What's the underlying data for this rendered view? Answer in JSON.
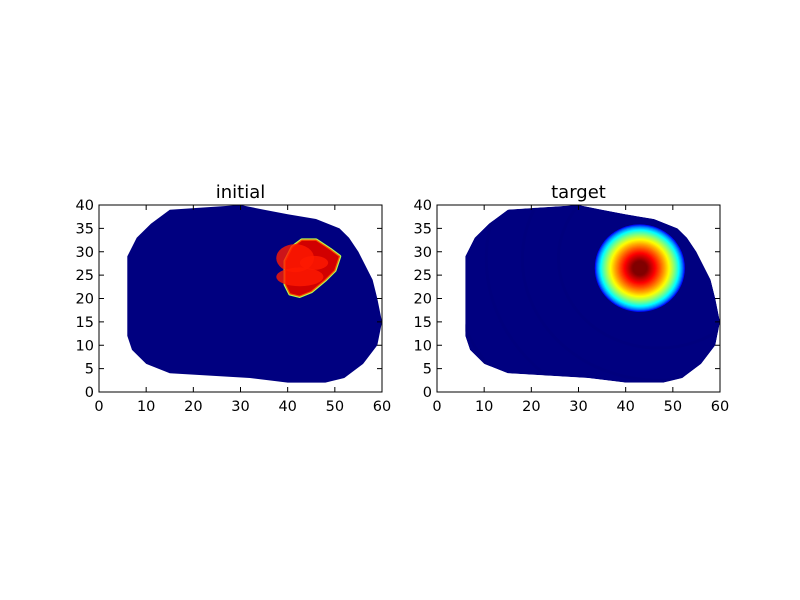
{
  "chart_data": [
    {
      "type": "heatmap",
      "title": "initial",
      "xlabel": "",
      "ylabel": "",
      "xlim": [
        0,
        60
      ],
      "ylim": [
        0,
        40
      ],
      "xticks": [
        "0",
        "10",
        "20",
        "30",
        "40",
        "50",
        "60"
      ],
      "yticks": [
        "0",
        "5",
        "10",
        "15",
        "20",
        "25",
        "30",
        "35",
        "40"
      ],
      "colormap": "jet",
      "background_level": 0.0,
      "domain_outline": [
        [
          6,
          12
        ],
        [
          6,
          29
        ],
        [
          8,
          33
        ],
        [
          11,
          36
        ],
        [
          15,
          39
        ],
        [
          30,
          40
        ],
        [
          35,
          39
        ],
        [
          40,
          38
        ],
        [
          46,
          37
        ],
        [
          51,
          35
        ],
        [
          53,
          33
        ],
        [
          55,
          30
        ],
        [
          58,
          24
        ],
        [
          59,
          20
        ],
        [
          60,
          15
        ],
        [
          59,
          10
        ],
        [
          56,
          6
        ],
        [
          52,
          3
        ],
        [
          48,
          2
        ],
        [
          40,
          2
        ],
        [
          32,
          3
        ],
        [
          15,
          4
        ],
        [
          10,
          6
        ],
        [
          7,
          9
        ]
      ],
      "hotspot": {
        "outline": [
          [
            40.5,
            21
          ],
          [
            39.5,
            23
          ],
          [
            39.5,
            28
          ],
          [
            41,
            31
          ],
          [
            43,
            32.5
          ],
          [
            46,
            32.5
          ],
          [
            49,
            30.5
          ],
          [
            51,
            29
          ],
          [
            50,
            26
          ],
          [
            48,
            24
          ],
          [
            45,
            21.5
          ],
          [
            42.5,
            20.5
          ]
        ],
        "level": 0.92,
        "edge_sharpness": "sharp"
      }
    },
    {
      "type": "heatmap",
      "title": "target",
      "xlabel": "",
      "ylabel": "",
      "xlim": [
        0,
        60
      ],
      "ylim": [
        0,
        40
      ],
      "xticks": [
        "0",
        "10",
        "20",
        "30",
        "40",
        "50",
        "60"
      ],
      "yticks": [
        "0",
        "5",
        "10",
        "15",
        "20",
        "25",
        "30",
        "35",
        "40"
      ],
      "colormap": "jet",
      "background_level": 0.0,
      "domain_outline": [
        [
          6,
          12
        ],
        [
          6,
          29
        ],
        [
          8,
          33
        ],
        [
          11,
          36
        ],
        [
          15,
          39
        ],
        [
          30,
          40
        ],
        [
          35,
          39
        ],
        [
          40,
          38
        ],
        [
          46,
          37
        ],
        [
          51,
          35
        ],
        [
          53,
          33
        ],
        [
          55,
          30
        ],
        [
          58,
          24
        ],
        [
          59,
          20
        ],
        [
          60,
          15
        ],
        [
          59,
          10
        ],
        [
          56,
          6
        ],
        [
          52,
          3
        ],
        [
          48,
          2
        ],
        [
          40,
          2
        ],
        [
          32,
          3
        ],
        [
          15,
          4
        ],
        [
          10,
          6
        ],
        [
          7,
          9
        ]
      ],
      "hotspot": {
        "center": [
          43,
          26.5
        ],
        "rx": 8.5,
        "ry": 8.5,
        "level": 1.0,
        "edge_sharpness": "smooth"
      }
    }
  ]
}
